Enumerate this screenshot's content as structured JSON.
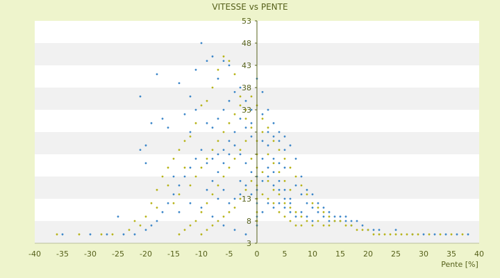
{
  "chart_data": {
    "type": "scatter",
    "title": "VITESSE vs PENTE",
    "xlabel": "Pente [%]",
    "ylabel": "",
    "xlim": [
      -40,
      40
    ],
    "ylim": [
      3,
      53
    ],
    "x_ticks": [
      -40,
      -35,
      -30,
      -25,
      -20,
      -15,
      -10,
      -5,
      0,
      5,
      10,
      15,
      20,
      25,
      30,
      35,
      40
    ],
    "y_ticks": [
      3,
      8,
      13,
      18,
      23,
      28,
      33,
      38,
      43,
      48,
      53
    ],
    "y_tick_labels": [
      "3",
      "8",
      "13",
      "",
      "",
      "",
      "33",
      "38",
      "43",
      "48",
      "53"
    ],
    "grid": "horizontal bands",
    "legend": "none",
    "series": [
      {
        "color": "#3d87c9",
        "points": [
          [
            -10,
            48
          ],
          [
            -9,
            44
          ],
          [
            -8,
            45
          ],
          [
            -6,
            44
          ],
          [
            -11,
            42
          ],
          [
            -5,
            43
          ],
          [
            -7,
            40
          ],
          [
            -14,
            39
          ],
          [
            -18,
            41
          ],
          [
            -21,
            36
          ],
          [
            -17,
            31
          ],
          [
            -19,
            30
          ],
          [
            -16,
            29
          ],
          [
            -13,
            32
          ],
          [
            -12,
            28
          ],
          [
            -3,
            38
          ],
          [
            -2,
            35
          ],
          [
            -1,
            33
          ],
          [
            0,
            40
          ],
          [
            1,
            37
          ],
          [
            2,
            33
          ],
          [
            1,
            32
          ],
          [
            -1,
            30
          ],
          [
            3,
            30
          ],
          [
            4,
            28
          ],
          [
            5,
            27
          ],
          [
            2,
            25
          ],
          [
            6,
            25
          ],
          [
            7,
            22
          ],
          [
            3,
            22
          ],
          [
            4,
            21
          ],
          [
            5,
            20
          ],
          [
            -4,
            28
          ],
          [
            -5,
            26
          ],
          [
            -6,
            24
          ],
          [
            -7,
            23
          ],
          [
            -8,
            22
          ],
          [
            -9,
            21
          ],
          [
            -10,
            24
          ],
          [
            -11,
            22
          ],
          [
            -12,
            20
          ],
          [
            -13,
            18
          ],
          [
            -14,
            16
          ],
          [
            -15,
            14
          ],
          [
            -16,
            12
          ],
          [
            -17,
            10
          ],
          [
            -18,
            8
          ],
          [
            -19,
            7
          ],
          [
            -20,
            6
          ],
          [
            -22,
            5
          ],
          [
            -20,
            21
          ],
          [
            -21,
            24
          ],
          [
            -20,
            25
          ],
          [
            -15,
            18
          ],
          [
            -14,
            10
          ],
          [
            -12,
            12
          ],
          [
            -10,
            11
          ],
          [
            -8,
            9
          ],
          [
            -6,
            7
          ],
          [
            -4,
            6
          ],
          [
            -2,
            5
          ],
          [
            8,
            18
          ],
          [
            9,
            15
          ],
          [
            10,
            14
          ],
          [
            11,
            12
          ],
          [
            12,
            11
          ],
          [
            13,
            10
          ],
          [
            14,
            9
          ],
          [
            15,
            8
          ],
          [
            16,
            8
          ],
          [
            17,
            7
          ],
          [
            18,
            8
          ],
          [
            19,
            7
          ],
          [
            20,
            6
          ],
          [
            21,
            6
          ],
          [
            22,
            6
          ],
          [
            25,
            6
          ],
          [
            28,
            5
          ],
          [
            30,
            5
          ],
          [
            32,
            5
          ],
          [
            34,
            5
          ],
          [
            36,
            5
          ],
          [
            38,
            5
          ],
          [
            7,
            16
          ],
          [
            8,
            14
          ],
          [
            9,
            12
          ],
          [
            10,
            11
          ],
          [
            11,
            10
          ],
          [
            12,
            9
          ],
          [
            13,
            8
          ],
          [
            14,
            8
          ],
          [
            15,
            9
          ],
          [
            16,
            9
          ],
          [
            17,
            8
          ],
          [
            6,
            13
          ],
          [
            5,
            15
          ],
          [
            4,
            17
          ],
          [
            3,
            19
          ],
          [
            2,
            20
          ],
          [
            1,
            22
          ],
          [
            0,
            18
          ],
          [
            0,
            15
          ],
          [
            0,
            12
          ],
          [
            0,
            9
          ],
          [
            0,
            7
          ],
          [
            1,
            10
          ],
          [
            2,
            12
          ],
          [
            3,
            11
          ],
          [
            4,
            12
          ],
          [
            5,
            11
          ],
          [
            6,
            10
          ],
          [
            7,
            9
          ],
          [
            8,
            10
          ],
          [
            9,
            9
          ],
          [
            10,
            8
          ],
          [
            -1,
            19
          ],
          [
            -2,
            21
          ],
          [
            -3,
            23
          ],
          [
            -4,
            25
          ],
          [
            -5,
            23
          ],
          [
            -6,
            21
          ],
          [
            -7,
            19
          ],
          [
            -8,
            17
          ],
          [
            -9,
            15
          ],
          [
            -3,
            17
          ],
          [
            -2,
            16
          ],
          [
            -1,
            14
          ],
          [
            -3,
            14
          ],
          [
            -4,
            13
          ],
          [
            -5,
            12
          ],
          [
            -6,
            15
          ],
          [
            -7,
            13
          ],
          [
            2,
            18
          ],
          [
            3,
            16
          ],
          [
            4,
            15
          ],
          [
            5,
            13
          ],
          [
            6,
            12
          ],
          [
            1,
            17
          ],
          [
            -30,
            5
          ],
          [
            -27,
            5
          ],
          [
            -24,
            5
          ],
          [
            -25,
            9
          ],
          [
            -35,
            5
          ],
          [
            -12,
            36
          ],
          [
            -11,
            33
          ],
          [
            -9,
            30
          ],
          [
            -8,
            29
          ],
          [
            -7,
            31
          ],
          [
            -6,
            33
          ],
          [
            -5,
            35
          ],
          [
            -4,
            37
          ],
          [
            -3,
            31
          ],
          [
            -2,
            29
          ],
          [
            -1,
            27
          ],
          [
            1,
            26
          ],
          [
            2,
            28
          ],
          [
            3,
            27
          ],
          [
            4,
            26
          ],
          [
            5,
            24
          ]
        ]
      },
      {
        "color": "#b7b41a",
        "points": [
          [
            -6,
            45
          ],
          [
            -5,
            44
          ],
          [
            -7,
            42
          ],
          [
            -4,
            41
          ],
          [
            -8,
            38
          ],
          [
            -3,
            36
          ],
          [
            -9,
            35
          ],
          [
            -2,
            33
          ],
          [
            -10,
            34
          ],
          [
            -11,
            30
          ],
          [
            -12,
            27
          ],
          [
            -13,
            26
          ],
          [
            -14,
            24
          ],
          [
            -15,
            22
          ],
          [
            -16,
            20
          ],
          [
            -17,
            18
          ],
          [
            -18,
            15
          ],
          [
            -19,
            12
          ],
          [
            -20,
            9
          ],
          [
            -21,
            7
          ],
          [
            -23,
            6
          ],
          [
            -1,
            36
          ],
          [
            0,
            34
          ],
          [
            1,
            31
          ],
          [
            2,
            29
          ],
          [
            3,
            26
          ],
          [
            4,
            24
          ],
          [
            5,
            22
          ],
          [
            6,
            20
          ],
          [
            7,
            18
          ],
          [
            8,
            16
          ],
          [
            9,
            14
          ],
          [
            10,
            12
          ],
          [
            11,
            11
          ],
          [
            12,
            10
          ],
          [
            13,
            9
          ],
          [
            14,
            8
          ],
          [
            15,
            8
          ],
          [
            16,
            7
          ],
          [
            17,
            7
          ],
          [
            18,
            6
          ],
          [
            19,
            6
          ],
          [
            20,
            6
          ],
          [
            22,
            5
          ],
          [
            24,
            5
          ],
          [
            26,
            5
          ],
          [
            28,
            5
          ],
          [
            31,
            5
          ],
          [
            33,
            5
          ],
          [
            35,
            5
          ],
          [
            37,
            5
          ],
          [
            -2,
            26
          ],
          [
            -3,
            24
          ],
          [
            -4,
            22
          ],
          [
            -5,
            20
          ],
          [
            -6,
            18
          ],
          [
            -7,
            16
          ],
          [
            -8,
            14
          ],
          [
            -9,
            12
          ],
          [
            -10,
            10
          ],
          [
            -11,
            8
          ],
          [
            -12,
            7
          ],
          [
            -13,
            6
          ],
          [
            -14,
            5
          ],
          [
            -1,
            22
          ],
          [
            0,
            20
          ],
          [
            1,
            19
          ],
          [
            2,
            17
          ],
          [
            3,
            15
          ],
          [
            4,
            14
          ],
          [
            5,
            12
          ],
          [
            6,
            11
          ],
          [
            7,
            10
          ],
          [
            8,
            9
          ],
          [
            9,
            8
          ],
          [
            10,
            7
          ],
          [
            0,
            26
          ],
          [
            0,
            23
          ],
          [
            0,
            16
          ],
          [
            0,
            13
          ],
          [
            0,
            10
          ],
          [
            0,
            8
          ],
          [
            -1,
            17
          ],
          [
            -2,
            15
          ],
          [
            -3,
            13
          ],
          [
            -4,
            11
          ],
          [
            -5,
            10
          ],
          [
            -6,
            9
          ],
          [
            -7,
            8
          ],
          [
            -8,
            7
          ],
          [
            -9,
            6
          ],
          [
            -10,
            5
          ],
          [
            1,
            14
          ],
          [
            2,
            13
          ],
          [
            3,
            12
          ],
          [
            4,
            10
          ],
          [
            5,
            9
          ],
          [
            6,
            8
          ],
          [
            7,
            7
          ],
          [
            8,
            7
          ],
          [
            -28,
            5
          ],
          [
            -32,
            5
          ],
          [
            -36,
            5
          ],
          [
            -26,
            5
          ],
          [
            -22,
            8
          ],
          [
            -18,
            11
          ],
          [
            -16,
            16
          ],
          [
            -15,
            12
          ],
          [
            -14,
            14
          ],
          [
            -13,
            20
          ],
          [
            -12,
            16
          ],
          [
            -11,
            18
          ],
          [
            -10,
            20
          ],
          [
            -9,
            22
          ],
          [
            -8,
            24
          ],
          [
            -7,
            26
          ],
          [
            -6,
            28
          ],
          [
            -5,
            30
          ],
          [
            -4,
            32
          ],
          [
            -3,
            34
          ],
          [
            -2,
            31
          ],
          [
            -1,
            29
          ],
          [
            1,
            28
          ],
          [
            2,
            23
          ],
          [
            3,
            21
          ],
          [
            4,
            19
          ],
          [
            5,
            17
          ],
          [
            6,
            15
          ],
          [
            11,
            8
          ],
          [
            12,
            7
          ],
          [
            13,
            7
          ],
          [
            21,
            5
          ],
          [
            23,
            5
          ],
          [
            25,
            5
          ],
          [
            27,
            5
          ],
          [
            29,
            5
          ]
        ]
      }
    ]
  }
}
